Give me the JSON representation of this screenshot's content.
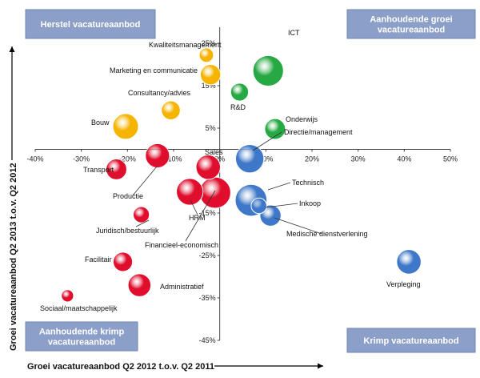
{
  "chart_data": {
    "type": "bubble",
    "xlabel": "Groei vacatureaanbod  Q2 2012 t.o.v. Q2 2011",
    "ylabel": "Groei vacatureaanbod  Q2 2013 t.o.v. Q2 2012",
    "xlim": [
      -40,
      50
    ],
    "ylim": [
      -45,
      25
    ],
    "x_ticks": [
      "-40%",
      "-30%",
      "-20%",
      "-10%",
      "0%",
      "10%",
      "20%",
      "30%",
      "40%",
      "50%"
    ],
    "y_ticks": [
      "25%",
      "15%",
      "5%",
      "-5%",
      "-15%",
      "-25%",
      "-35%",
      "-45%"
    ],
    "grid": false,
    "quadrants": [
      {
        "label": [
          "Herstel vacatureaanbod"
        ],
        "position": "top-left"
      },
      {
        "label": [
          "Aanhoudende groei",
          "vacatureaanbod"
        ],
        "position": "top-right"
      },
      {
        "label": [
          "Aanhoudende krimp",
          "vacatureaanbod"
        ],
        "position": "bottom-left"
      },
      {
        "label": [
          "Krimp vacatureaanbod"
        ],
        "position": "bottom-right"
      }
    ],
    "points": [
      {
        "name": "ICT",
        "x": 10.5,
        "y": 18.5,
        "size": 5.0,
        "color": "#26a843"
      },
      {
        "name": "Kwaliteitsmanagement",
        "x": -2.9,
        "y": 22.2,
        "size": 1.1,
        "color": "#f5b400"
      },
      {
        "name": "Marketing en communicatie",
        "x": -2.0,
        "y": 17.6,
        "size": 2.2,
        "color": "#f5b400"
      },
      {
        "name": "R&D",
        "x": 4.3,
        "y": 13.5,
        "size": 1.7,
        "color": "#26a843"
      },
      {
        "name": "Consultancy/advies",
        "x": -10.6,
        "y": 9.2,
        "size": 1.9,
        "color": "#f5b400"
      },
      {
        "name": "Bouw",
        "x": -20.4,
        "y": 5.4,
        "size": 3.5,
        "color": "#f5b400"
      },
      {
        "name": "Onderwijs",
        "x": 12.0,
        "y": 4.8,
        "size": 2.3,
        "color": "#26a843"
      },
      {
        "name": "Directie/management",
        "x": 6.5,
        "y": -2.2,
        "size": 4.3,
        "color": "#3f78c8"
      },
      {
        "name": "Sales",
        "x": -2.5,
        "y": -4.2,
        "size": 3.2,
        "color": "#e00e2c"
      },
      {
        "name": "Transport",
        "x": -22.4,
        "y": -4.7,
        "size": 2.3,
        "color": "#e00e2c"
      },
      {
        "name": "Productie",
        "x": -13.5,
        "y": -1.5,
        "size": 3.1,
        "color": "#e00e2c"
      },
      {
        "name": "HRM",
        "x": -6.5,
        "y": -10.0,
        "size": 3.8,
        "color": "#e00e2c"
      },
      {
        "name": "Financieel-economisch",
        "x": -1.0,
        "y": -10.2,
        "size": 5.2,
        "color": "#e00e2c"
      },
      {
        "name": "Technisch",
        "x": 6.8,
        "y": -12.0,
        "size": 5.4,
        "color": "#3f78c8"
      },
      {
        "name": "Inkoop",
        "x": 8.5,
        "y": -13.3,
        "size": 1.3,
        "color": "#3f78c8"
      },
      {
        "name": "Medische dienstverlening",
        "x": 11.0,
        "y": -15.6,
        "size": 2.4,
        "color": "#3f78c8"
      },
      {
        "name": "Juridisch/bestuurlijk",
        "x": -17.0,
        "y": -15.4,
        "size": 1.4,
        "color": "#e00e2c"
      },
      {
        "name": "Facilitair",
        "x": -21.0,
        "y": -26.5,
        "size": 2.0,
        "color": "#e00e2c"
      },
      {
        "name": "Administratief",
        "x": -17.4,
        "y": -32.0,
        "size": 2.8,
        "color": "#e00e2c"
      },
      {
        "name": "Sociaal/maatschappelijk",
        "x": -33.0,
        "y": -34.5,
        "size": 0.8,
        "color": "#e00e2c"
      },
      {
        "name": "Verpleging",
        "x": 41.0,
        "y": -26.5,
        "size": 3.2,
        "color": "#3f78c8"
      }
    ]
  }
}
